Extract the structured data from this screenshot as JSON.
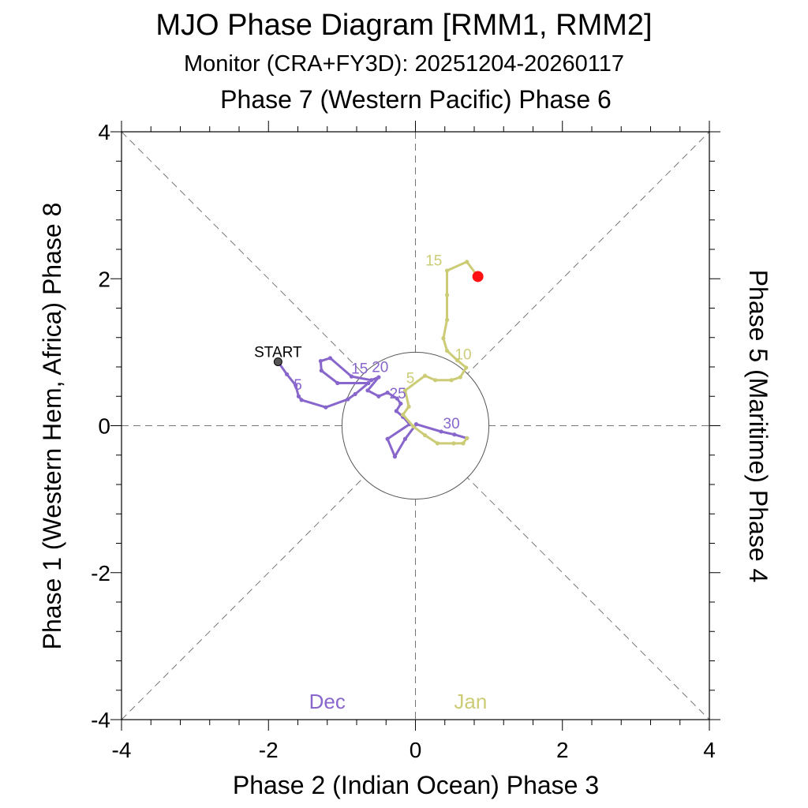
{
  "chart_data": {
    "type": "line",
    "title": "MJO Phase Diagram [RMM1, RMM2]",
    "subtitle": "Monitor (CRA+FY3D): 20251204-20260117",
    "top_label": "Phase 7 (Western Pacific) Phase 6",
    "xlabel": "Phase 2 (Indian Ocean) Phase 3",
    "ylabel_left": "Phase 1 (Western Hem, Africa) Phase 8",
    "ylabel_right": "Phase 5 (Maritime) Phase 4",
    "xlim": [
      -4,
      4
    ],
    "ylim": [
      -4,
      4
    ],
    "major_ticks": [
      -4,
      -2,
      0,
      2,
      4
    ],
    "minor_step": 0.4,
    "unit_circle_radius": 1,
    "start_label": "START",
    "series": [
      {
        "name": "Dec",
        "color": "#8866cc",
        "points": [
          [
            -1.87,
            0.87
          ],
          [
            -1.75,
            0.7
          ],
          [
            -1.63,
            0.55
          ],
          [
            -1.59,
            0.4
          ],
          [
            -1.55,
            0.35
          ],
          [
            -1.22,
            0.25
          ],
          [
            -0.92,
            0.36
          ],
          [
            -0.82,
            0.43
          ],
          [
            -0.64,
            0.58
          ],
          [
            -1.06,
            0.58
          ],
          [
            -1.28,
            0.75
          ],
          [
            -1.29,
            0.88
          ],
          [
            -1.16,
            0.92
          ],
          [
            -0.87,
            0.67
          ],
          [
            -0.6,
            0.62
          ],
          [
            -0.5,
            0.66
          ],
          [
            -0.65,
            0.48
          ],
          [
            -0.5,
            0.4
          ],
          [
            -0.38,
            0.45
          ],
          [
            -0.25,
            0.37
          ],
          [
            -0.2,
            0.3
          ],
          [
            -0.26,
            0.2
          ],
          [
            -0.17,
            0.12
          ],
          [
            -0.08,
            0.02
          ],
          [
            -0.38,
            -0.18
          ],
          [
            -0.28,
            -0.42
          ],
          [
            -0.14,
            -0.18
          ],
          [
            0.01,
            0.02
          ],
          [
            0.35,
            -0.08
          ],
          [
            0.53,
            -0.12
          ],
          [
            0.7,
            -0.17
          ]
        ],
        "day_labels": [
          {
            "text": "5",
            "x": -1.6,
            "y": 0.49
          },
          {
            "text": "15",
            "x": -0.76,
            "y": 0.71
          },
          {
            "text": "20",
            "x": -0.48,
            "y": 0.73
          },
          {
            "text": "25",
            "x": -0.24,
            "y": 0.37
          },
          {
            "text": "30",
            "x": 0.49,
            "y": -0.04
          }
        ]
      },
      {
        "name": "Jan",
        "color": "#cccc77",
        "points": [
          [
            0.7,
            -0.17
          ],
          [
            0.65,
            -0.24
          ],
          [
            0.52,
            -0.24
          ],
          [
            0.3,
            -0.24
          ],
          [
            0.13,
            -0.13
          ],
          [
            -0.03,
            -0.01
          ],
          [
            -0.17,
            0.15
          ],
          [
            -0.09,
            0.26
          ],
          [
            -0.14,
            0.48
          ],
          [
            0.13,
            0.68
          ],
          [
            0.27,
            0.62
          ],
          [
            0.49,
            0.62
          ],
          [
            0.61,
            0.66
          ],
          [
            0.69,
            0.79
          ],
          [
            0.57,
            0.89
          ],
          [
            0.43,
            1.02
          ],
          [
            0.38,
            1.19
          ],
          [
            0.43,
            1.44
          ],
          [
            0.43,
            1.78
          ],
          [
            0.43,
            2.11
          ],
          [
            0.7,
            2.23
          ],
          [
            0.85,
            2.03
          ]
        ],
        "day_labels": [
          {
            "text": "5",
            "x": -0.07,
            "y": 0.58
          },
          {
            "text": "10",
            "x": 0.65,
            "y": 0.9
          },
          {
            "text": "15",
            "x": 0.25,
            "y": 2.18
          }
        ]
      }
    ]
  }
}
